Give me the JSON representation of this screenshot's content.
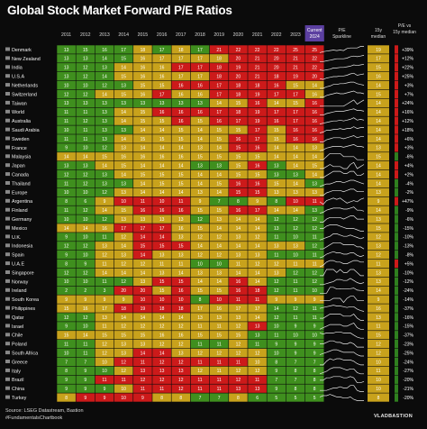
{
  "title": "Global Stock Market Forward P/E Ratios",
  "header": {
    "years": [
      "2011",
      "2012",
      "2013",
      "2014",
      "2015",
      "2016",
      "2017",
      "2018",
      "2019",
      "2020",
      "2021",
      "2022",
      "2023"
    ],
    "current": "Current 2024",
    "sparkline": "P/E Sparkline",
    "median": "15y median",
    "vs": "P/E vs 15y median"
  },
  "footer": {
    "source": "Source: LSEG Datastream, Bastion",
    "handle": "#FundamentalsChartbook"
  },
  "brand": "VLADBASTION",
  "colors": {
    "high": "#cc1a1a",
    "mid": "#c8a21c",
    "low": "#3f8f1e",
    "vs_pos": "#cc1a1a",
    "vs_neg": "#2f7f1f",
    "current_header": "#5b3fa0"
  },
  "chart_data": {
    "type": "table",
    "columns": [
      "2011",
      "2012",
      "2013",
      "2014",
      "2015",
      "2016",
      "2017",
      "2018",
      "2019",
      "2020",
      "2021",
      "2022",
      "2023",
      "Current 2024"
    ],
    "rows": [
      {
        "name": "Denmark",
        "values": [
          13,
          15,
          16,
          17,
          18,
          17,
          18,
          17,
          21,
          22,
          22,
          22,
          25,
          25
        ],
        "median": 19,
        "vs": "+39%"
      },
      {
        "name": "New Zealand",
        "values": [
          13,
          13,
          14,
          15,
          16,
          17,
          17,
          17,
          18,
          20,
          21,
          20,
          21,
          22
        ],
        "median": 17,
        "vs": "+12%"
      },
      {
        "name": "India",
        "values": [
          13,
          12,
          13,
          14,
          16,
          16,
          17,
          17,
          18,
          19,
          21,
          20,
          21,
          22
        ],
        "median": 15,
        "vs": "+22%"
      },
      {
        "name": "U.S.A",
        "values": [
          13,
          12,
          14,
          15,
          16,
          16,
          17,
          17,
          18,
          20,
          21,
          18,
          19,
          20
        ],
        "median": 16,
        "vs": "+25%"
      },
      {
        "name": "Netherlands",
        "values": [
          10,
          10,
          12,
          13,
          15,
          15,
          16,
          16,
          17,
          18,
          18,
          16,
          15,
          14
        ],
        "median": 14,
        "vs": "+3%"
      },
      {
        "name": "Switzerland",
        "values": [
          12,
          12,
          14,
          15,
          16,
          17,
          16,
          16,
          17,
          18,
          19,
          17,
          17,
          16
        ],
        "median": 15,
        "vs": "+7%"
      },
      {
        "name": "Taiwan",
        "values": [
          13,
          13,
          13,
          13,
          13,
          13,
          13,
          13,
          14,
          15,
          16,
          14,
          15,
          16
        ],
        "median": 14,
        "vs": "+24%"
      },
      {
        "name": "World",
        "values": [
          11,
          11,
          13,
          14,
          15,
          16,
          16,
          16,
          17,
          18,
          19,
          17,
          17,
          16
        ],
        "median": 14,
        "vs": "+16%"
      },
      {
        "name": "Australia",
        "values": [
          11,
          12,
          13,
          14,
          15,
          15,
          16,
          15,
          16,
          17,
          19,
          16,
          17,
          16
        ],
        "median": 14,
        "vs": "+12%"
      },
      {
        "name": "Saudi Arabia",
        "values": [
          10,
          11,
          13,
          13,
          14,
          14,
          15,
          14,
          15,
          15,
          17,
          15,
          16,
          16
        ],
        "median": 14,
        "vs": "+18%"
      },
      {
        "name": "Sweden",
        "values": [
          11,
          11,
          13,
          14,
          15,
          15,
          15,
          14,
          15,
          16,
          17,
          15,
          16,
          16
        ],
        "median": 14,
        "vs": "+6%"
      },
      {
        "name": "France",
        "values": [
          9,
          10,
          12,
          13,
          14,
          14,
          14,
          13,
          14,
          15,
          16,
          14,
          14,
          13
        ],
        "median": 13,
        "vs": "+3%"
      },
      {
        "name": "Malaysia",
        "values": [
          14,
          14,
          15,
          16,
          16,
          16,
          16,
          15,
          15,
          15,
          15,
          14,
          14,
          14
        ],
        "median": 15,
        "vs": "-6%"
      },
      {
        "name": "Japan",
        "values": [
          13,
          13,
          14,
          15,
          14,
          14,
          14,
          13,
          13,
          15,
          16,
          13,
          14,
          15
        ],
        "median": 14,
        "vs": "+4%"
      },
      {
        "name": "Canada",
        "values": [
          12,
          12,
          13,
          14,
          15,
          15,
          15,
          14,
          14,
          15,
          15,
          13,
          13,
          14
        ],
        "median": 14,
        "vs": "+2%"
      },
      {
        "name": "Thailand",
        "values": [
          11,
          12,
          13,
          13,
          14,
          15,
          15,
          14,
          15,
          16,
          16,
          15,
          14,
          13
        ],
        "median": 14,
        "vs": "-4%"
      },
      {
        "name": "Europe",
        "values": [
          10,
          10,
          12,
          13,
          14,
          14,
          14,
          13,
          14,
          15,
          15,
          13,
          13,
          13
        ],
        "median": 13,
        "vs": "-2%"
      },
      {
        "name": "Argentina",
        "values": [
          8,
          6,
          9,
          10,
          11,
          10,
          11,
          9,
          7,
          8,
          9,
          8,
          10,
          11
        ],
        "median": 9,
        "vs": "+47%"
      },
      {
        "name": "Finland",
        "values": [
          11,
          12,
          14,
          15,
          16,
          16,
          16,
          15,
          15,
          16,
          17,
          14,
          14,
          13
        ],
        "median": 14,
        "vs": "-9%"
      },
      {
        "name": "Germany",
        "values": [
          10,
          10,
          12,
          13,
          13,
          13,
          13,
          12,
          13,
          14,
          14,
          12,
          12,
          12
        ],
        "median": 13,
        "vs": "-6%"
      },
      {
        "name": "Mexico",
        "values": [
          14,
          14,
          16,
          17,
          17,
          17,
          16,
          15,
          14,
          14,
          14,
          13,
          12,
          12
        ],
        "median": 15,
        "vs": "-15%"
      },
      {
        "name": "U.K.",
        "values": [
          9,
          10,
          11,
          12,
          14,
          14,
          13,
          12,
          12,
          13,
          12,
          11,
          10,
          11
        ],
        "median": 12,
        "vs": "-10%"
      },
      {
        "name": "Indonesia",
        "values": [
          12,
          12,
          13,
          14,
          15,
          15,
          15,
          14,
          14,
          14,
          14,
          13,
          13,
          12
        ],
        "median": 13,
        "vs": "-13%"
      },
      {
        "name": "Spain",
        "values": [
          9,
          10,
          12,
          13,
          14,
          13,
          13,
          12,
          12,
          13,
          13,
          11,
          10,
          11
        ],
        "median": 12,
        "vs": "-8%"
      },
      {
        "name": "U.A.E",
        "values": [
          8,
          9,
          11,
          12,
          12,
          11,
          11,
          10,
          10,
          11,
          12,
          12,
          11,
          11
        ],
        "median": 11,
        "vs": "+5%"
      },
      {
        "name": "Singapore",
        "values": [
          12,
          12,
          14,
          14,
          14,
          13,
          14,
          13,
          13,
          14,
          14,
          13,
          12,
          12
        ],
        "median": 13,
        "vs": "-10%"
      },
      {
        "name": "Norway",
        "values": [
          10,
          10,
          11,
          12,
          13,
          15,
          15,
          14,
          14,
          16,
          14,
          12,
          11,
          12
        ],
        "median": 13,
        "vs": "-12%"
      },
      {
        "name": "Ireland",
        "values": [
          2,
          2,
          3,
          20,
          20,
          15,
          16,
          15,
          15,
          16,
          18,
          12,
          11,
          10
        ],
        "median": 14,
        "vs": "-24%"
      },
      {
        "name": "South Korea",
        "values": [
          9,
          9,
          9,
          9,
          10,
          10,
          10,
          8,
          10,
          11,
          11,
          9,
          9,
          9
        ],
        "median": 9,
        "vs": "-14%"
      },
      {
        "name": "Philippines",
        "values": [
          15,
          16,
          17,
          18,
          19,
          18,
          18,
          17,
          16,
          17,
          17,
          14,
          12,
          11
        ],
        "median": 16,
        "vs": "-37%"
      },
      {
        "name": "Qatar",
        "values": [
          12,
          12,
          13,
          14,
          14,
          14,
          14,
          13,
          13,
          13,
          14,
          12,
          11,
          11
        ],
        "median": 13,
        "vs": "-16%"
      },
      {
        "name": "Israel",
        "values": [
          9,
          10,
          11,
          12,
          12,
          12,
          12,
          11,
          11,
          12,
          13,
          10,
          9,
          9
        ],
        "median": 11,
        "vs": "-15%"
      },
      {
        "name": "Chile",
        "values": [
          15,
          14,
          15,
          15,
          15,
          16,
          16,
          15,
          15,
          15,
          13,
          11,
          10,
          10
        ],
        "median": 15,
        "vs": "-37%"
      },
      {
        "name": "Poland",
        "values": [
          11,
          11,
          12,
          13,
          13,
          12,
          12,
          11,
          11,
          12,
          11,
          9,
          9,
          9
        ],
        "median": 12,
        "vs": "-23%"
      },
      {
        "name": "South Africa",
        "values": [
          10,
          11,
          12,
          13,
          14,
          14,
          13,
          12,
          12,
          12,
          12,
          10,
          9,
          9
        ],
        "median": 12,
        "vs": "-25%"
      },
      {
        "name": "Greece",
        "values": [
          7,
          7,
          10,
          12,
          11,
          12,
          12,
          11,
          11,
          11,
          10,
          8,
          7,
          7
        ],
        "median": 10,
        "vs": "-24%"
      },
      {
        "name": "Italy",
        "values": [
          8,
          9,
          10,
          12,
          13,
          13,
          13,
          12,
          11,
          12,
          12,
          9,
          8,
          8
        ],
        "median": 11,
        "vs": "-27%"
      },
      {
        "name": "Brazil",
        "values": [
          9,
          9,
          11,
          11,
          12,
          12,
          12,
          11,
          11,
          12,
          11,
          7,
          7,
          8
        ],
        "median": 10,
        "vs": "-20%"
      },
      {
        "name": "China",
        "values": [
          9,
          9,
          9,
          10,
          11,
          11,
          12,
          11,
          11,
          13,
          13,
          9,
          8,
          8
        ],
        "median": 10,
        "vs": "-21%"
      },
      {
        "name": "Turkey",
        "values": [
          8,
          9,
          9,
          10,
          9,
          8,
          8,
          7,
          7,
          8,
          6,
          5,
          5,
          5
        ],
        "median": 8,
        "vs": "-20%"
      }
    ]
  }
}
